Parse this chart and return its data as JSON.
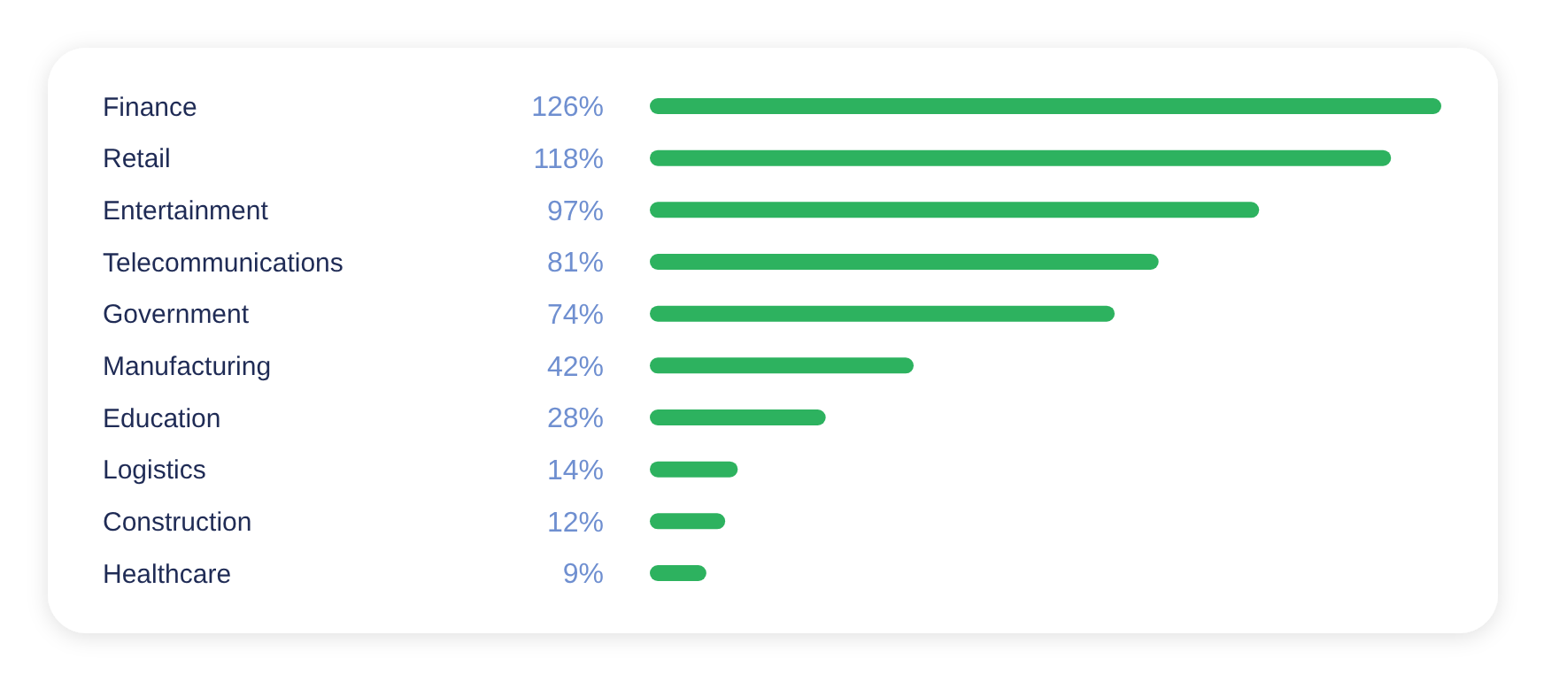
{
  "chart_data": {
    "type": "bar",
    "orientation": "horizontal",
    "categories": [
      "Finance",
      "Retail",
      "Entertainment",
      "Telecommunications",
      "Government",
      "Manufacturing",
      "Education",
      "Logistics",
      "Construction",
      "Healthcare"
    ],
    "values": [
      126,
      118,
      97,
      81,
      74,
      42,
      28,
      14,
      12,
      9
    ],
    "value_labels": [
      "126%",
      "118%",
      "97%",
      "81%",
      "74%",
      "42%",
      "28%",
      "14%",
      "12%",
      "9%"
    ],
    "color": "#2db25f"
  }
}
